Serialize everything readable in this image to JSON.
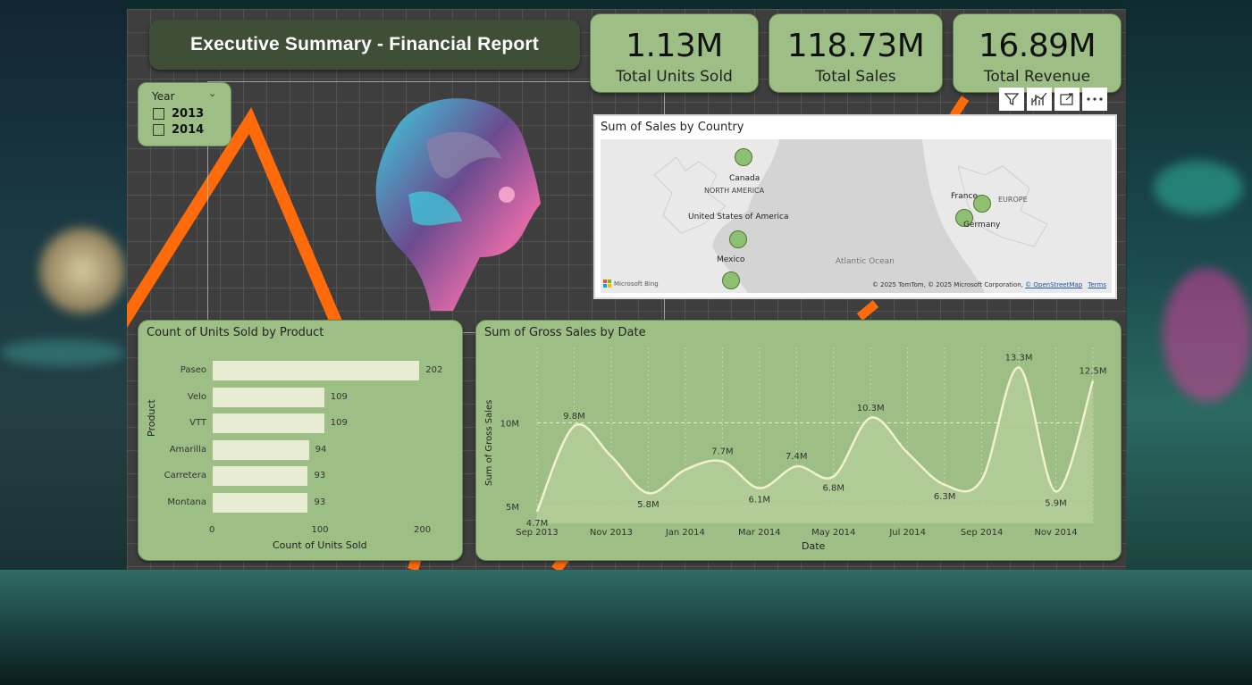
{
  "header": {
    "title": "Executive Summary - Financial Report"
  },
  "kpis": [
    {
      "value": "1.13M",
      "label": "Total Units Sold"
    },
    {
      "value": "118.73M",
      "label": "Total  Sales"
    },
    {
      "value": "16.89M",
      "label": "Total Revenue"
    }
  ],
  "slicer": {
    "title": "Year",
    "options": [
      "2013",
      "2014"
    ]
  },
  "map": {
    "title": "Sum of Sales by Country",
    "labels": {
      "canada": "Canada",
      "north_america": "NORTH AMERICA",
      "usa": "United States of America",
      "mexico": "Mexico",
      "atlantic": "Atlantic Ocean",
      "france": "France",
      "europe": "EUROPE",
      "germany": "Germany"
    },
    "provider": "Microsoft Bing",
    "copyright": "© 2025 TomTom, © 2025 Microsoft Corporation,",
    "osm": "© OpenStreetMap",
    "terms": "Terms"
  },
  "toolbar": {
    "filter": "filter-icon",
    "analyze": "analyze-icon",
    "focus": "focus-mode-icon",
    "more": "more-options-icon"
  },
  "chart_data": [
    {
      "type": "bar",
      "title": "Count of Units Sold by Product",
      "categories": [
        "Paseo",
        "Velo",
        "VTT",
        "Amarilla",
        "Carretera",
        "Montana"
      ],
      "values": [
        202,
        109,
        109,
        94,
        93,
        93
      ],
      "xlabel": "Count of Units Sold",
      "ylabel": "Product",
      "xlim": [
        0,
        200
      ],
      "xticks": [
        "0",
        "100",
        "200"
      ]
    },
    {
      "type": "area",
      "title": "Sum of Gross Sales by Date",
      "x": [
        "Sep 2013",
        "Oct 2013",
        "Nov 2013",
        "Dec 2013",
        "Jan 2014",
        "Feb 2014",
        "Mar 2014",
        "Apr 2014",
        "May 2014",
        "Jun 2014",
        "Jul 2014",
        "Aug 2014",
        "Sep 2014",
        "Oct 2014",
        "Nov 2014",
        "Dec 2014"
      ],
      "values": [
        4.7,
        9.8,
        8.0,
        5.8,
        7.2,
        7.7,
        6.1,
        7.4,
        6.8,
        10.3,
        8.2,
        6.3,
        6.6,
        13.3,
        5.9,
        12.5
      ],
      "data_labels": [
        "4.7M",
        "9.8M",
        "",
        "5.8M",
        "",
        "7.7M",
        "6.1M",
        "7.4M",
        "6.8M",
        "10.3M",
        "",
        "6.3M",
        "",
        "13.3M",
        "5.9M",
        "12.5M"
      ],
      "xticks": [
        "Sep 2013",
        "Nov 2013",
        "Jan 2014",
        "Mar 2014",
        "May 2014",
        "Jul 2014",
        "Sep 2014",
        "Nov 2014"
      ],
      "yticks": [
        "5M",
        "10M"
      ],
      "xlabel": "Date",
      "ylabel": "Sum of Gross Sales",
      "colors": {
        "line": "#f3f0cf",
        "fill": "#b4cc98"
      }
    }
  ]
}
